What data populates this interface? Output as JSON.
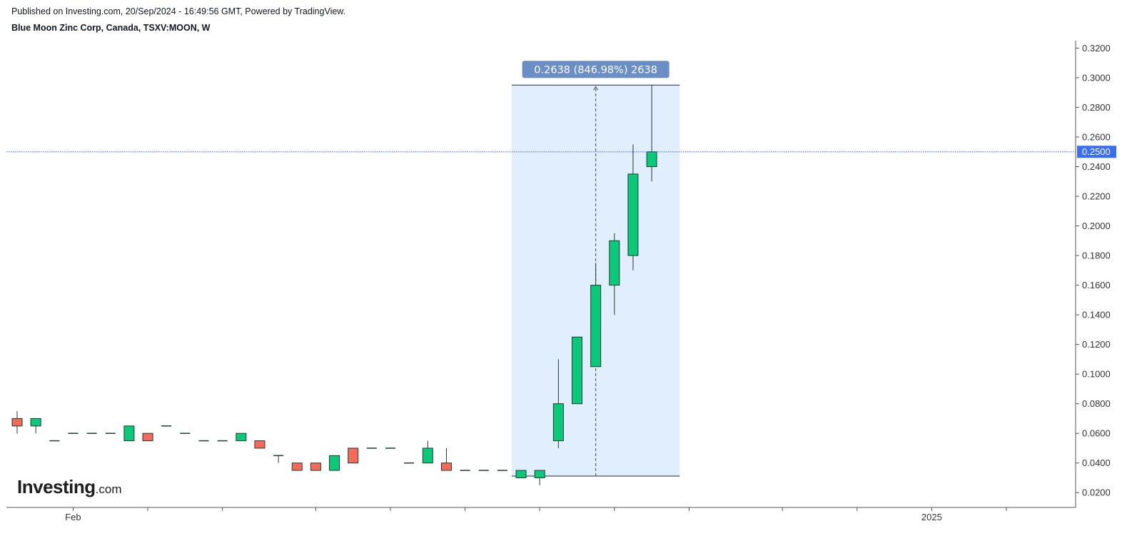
{
  "header": {
    "published": "Published on Investing.com, 20/Sep/2024 - 16:49:56 GMT, Powered by TradingView.",
    "title": "Blue Moon Zinc Corp, Canada, TSXV:MOON, W"
  },
  "logo": {
    "main": "Investing",
    "domain": ".com"
  },
  "colors": {
    "up": "#0bc97a",
    "down": "#f7695b",
    "wick": "#1e3d2c",
    "price_line": "#3a5ef5",
    "price_label_bg": "#3a6ff5",
    "measure_fill": "#e1eefd",
    "measure_label_bg": "#6b8ec5",
    "axis": "#555555"
  },
  "chart_data": {
    "type": "candlestick",
    "interval": "W",
    "ylim": [
      0.01,
      0.325
    ],
    "yticks": [
      "0.0200",
      "0.0400",
      "0.0600",
      "0.0800",
      "0.1000",
      "0.1200",
      "0.1400",
      "0.1600",
      "0.1800",
      "0.2000",
      "0.2200",
      "0.2400",
      "0.2600",
      "0.2800",
      "0.3000",
      "0.3200"
    ],
    "xlabels": [
      {
        "label": "Feb",
        "index": 3
      },
      {
        "label": "2025",
        "index": 49
      }
    ],
    "xtick_indices": [
      3,
      7,
      11,
      16,
      20,
      24,
      28,
      32,
      36,
      41,
      45,
      49,
      53
    ],
    "candles": [
      {
        "o": 0.07,
        "h": 0.075,
        "l": 0.06,
        "c": 0.065
      },
      {
        "o": 0.065,
        "h": 0.07,
        "l": 0.06,
        "c": 0.07
      },
      {
        "o": 0.055,
        "h": 0.055,
        "l": 0.055,
        "c": 0.055
      },
      {
        "o": 0.06,
        "h": 0.06,
        "l": 0.06,
        "c": 0.06
      },
      {
        "o": 0.06,
        "h": 0.06,
        "l": 0.06,
        "c": 0.06
      },
      {
        "o": 0.06,
        "h": 0.06,
        "l": 0.06,
        "c": 0.06
      },
      {
        "o": 0.055,
        "h": 0.065,
        "l": 0.055,
        "c": 0.065
      },
      {
        "o": 0.06,
        "h": 0.06,
        "l": 0.055,
        "c": 0.055
      },
      {
        "o": 0.065,
        "h": 0.065,
        "l": 0.065,
        "c": 0.065
      },
      {
        "o": 0.06,
        "h": 0.06,
        "l": 0.06,
        "c": 0.06
      },
      {
        "o": 0.055,
        "h": 0.055,
        "l": 0.055,
        "c": 0.055
      },
      {
        "o": 0.055,
        "h": 0.055,
        "l": 0.055,
        "c": 0.055
      },
      {
        "o": 0.055,
        "h": 0.06,
        "l": 0.055,
        "c": 0.06
      },
      {
        "o": 0.055,
        "h": 0.055,
        "l": 0.05,
        "c": 0.05
      },
      {
        "o": 0.045,
        "h": 0.045,
        "l": 0.04,
        "c": 0.045
      },
      {
        "o": 0.04,
        "h": 0.04,
        "l": 0.035,
        "c": 0.035
      },
      {
        "o": 0.04,
        "h": 0.04,
        "l": 0.035,
        "c": 0.035
      },
      {
        "o": 0.035,
        "h": 0.045,
        "l": 0.035,
        "c": 0.045
      },
      {
        "o": 0.05,
        "h": 0.05,
        "l": 0.04,
        "c": 0.04
      },
      {
        "o": 0.05,
        "h": 0.05,
        "l": 0.05,
        "c": 0.05
      },
      {
        "o": 0.05,
        "h": 0.05,
        "l": 0.05,
        "c": 0.05
      },
      {
        "o": 0.04,
        "h": 0.04,
        "l": 0.04,
        "c": 0.04
      },
      {
        "o": 0.04,
        "h": 0.055,
        "l": 0.04,
        "c": 0.05
      },
      {
        "o": 0.04,
        "h": 0.05,
        "l": 0.035,
        "c": 0.035
      },
      {
        "o": 0.035,
        "h": 0.035,
        "l": 0.035,
        "c": 0.035
      },
      {
        "o": 0.035,
        "h": 0.035,
        "l": 0.035,
        "c": 0.035
      },
      {
        "o": 0.035,
        "h": 0.035,
        "l": 0.035,
        "c": 0.035
      },
      {
        "o": 0.03,
        "h": 0.035,
        "l": 0.03,
        "c": 0.035
      },
      {
        "o": 0.03,
        "h": 0.035,
        "l": 0.025,
        "c": 0.035
      },
      {
        "o": 0.055,
        "h": 0.11,
        "l": 0.05,
        "c": 0.08
      },
      {
        "o": 0.08,
        "h": 0.125,
        "l": 0.08,
        "c": 0.125
      },
      {
        "o": 0.105,
        "h": 0.175,
        "l": 0.105,
        "c": 0.16
      },
      {
        "o": 0.16,
        "h": 0.195,
        "l": 0.14,
        "c": 0.19
      },
      {
        "o": 0.18,
        "h": 0.255,
        "l": 0.17,
        "c": 0.235
      },
      {
        "o": 0.24,
        "h": 0.295,
        "l": 0.23,
        "c": 0.25
      }
    ],
    "current_price": "0.2500",
    "measure": {
      "label": "0.2638 (846.98%) 2638",
      "from_index": 26.5,
      "to_index": 35.5,
      "low": 0.0312,
      "high": 0.295
    }
  }
}
